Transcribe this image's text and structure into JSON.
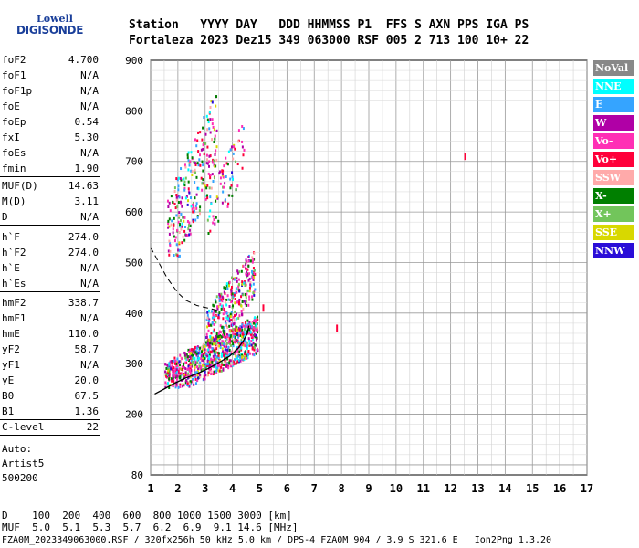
{
  "logo": {
    "top": "Lowell",
    "bottom": "DIGISONDE"
  },
  "header": {
    "line1": "Station   YYYY DAY   DDD HHMMSS P1  FFS S AXN PPS IGA PS",
    "line2": "Fortaleza 2023 Dez15 349 063000 RSF 005 2 713 100 10+ 22"
  },
  "params_a": [
    {
      "k": "foF2",
      "v": "4.700"
    },
    {
      "k": "foF1",
      "v": "N/A"
    },
    {
      "k": "foF1p",
      "v": "N/A"
    },
    {
      "k": "foE",
      "v": "N/A"
    },
    {
      "k": "foEp",
      "v": "0.54"
    },
    {
      "k": "fxI",
      "v": "5.30"
    },
    {
      "k": "foEs",
      "v": "N/A"
    },
    {
      "k": "fmin",
      "v": "1.90"
    }
  ],
  "params_b": [
    {
      "k": "MUF(D)",
      "v": "14.63"
    },
    {
      "k": "M(D)",
      "v": "3.11"
    },
    {
      "k": "D",
      "v": "N/A"
    }
  ],
  "params_c": [
    {
      "k": "h`F",
      "v": "274.0"
    },
    {
      "k": "h`F2",
      "v": "274.0"
    },
    {
      "k": "h`E",
      "v": "N/A"
    },
    {
      "k": "h`Es",
      "v": "N/A"
    }
  ],
  "params_d": [
    {
      "k": "hmF2",
      "v": "338.7"
    },
    {
      "k": "hmF1",
      "v": "N/A"
    },
    {
      "k": "hmE",
      "v": "110.0"
    },
    {
      "k": "yF2",
      "v": "58.7"
    },
    {
      "k": "yF1",
      "v": "N/A"
    },
    {
      "k": "yE",
      "v": "20.0"
    },
    {
      "k": "B0",
      "v": "67.5"
    },
    {
      "k": "B1",
      "v": "1.36"
    }
  ],
  "params_e": [
    {
      "k": "C-level",
      "v": "22"
    }
  ],
  "auto": [
    "Auto:",
    "Artist5",
    "500200"
  ],
  "legend": [
    {
      "label": "NoVal",
      "color": "#888888"
    },
    {
      "label": "NNE",
      "color": "#00ffff"
    },
    {
      "label": "E",
      "color": "#35a4ff"
    },
    {
      "label": "W",
      "color": "#b000a6"
    },
    {
      "label": "Vo-",
      "color": "#ff2fb5"
    },
    {
      "label": "Vo+",
      "color": "#ff003a"
    },
    {
      "label": "SSW",
      "color": "#ffaaaa"
    },
    {
      "label": "X-",
      "color": "#007f00"
    },
    {
      "label": "X+",
      "color": "#72c55b"
    },
    {
      "label": "SSE",
      "color": "#d8d800"
    },
    {
      "label": "NNW",
      "color": "#2a0dd8"
    }
  ],
  "footer": {
    "line1": "D    100  200  400  600  800 1000 1500 3000 [km]",
    "line2": "MUF  5.0  5.1  5.3  5.7  6.2  6.9  9.1 14.6 [MHz]",
    "line3": "FZA0M_2023349063000.RSF / 320fx256h 50 kHz 5.0 km / DPS-4 FZA0M 904 / 3.9 S 321.6 E   Ion2Png 1.3.20"
  },
  "chart_data": {
    "type": "scatter",
    "title": "",
    "xlabel": "",
    "ylabel": "",
    "xlim": [
      1,
      17
    ],
    "ylim": [
      80,
      900
    ],
    "x_ticks": [
      1,
      2,
      3,
      4,
      5,
      6,
      7,
      8,
      9,
      10,
      11,
      12,
      13,
      14,
      15,
      16,
      17
    ],
    "y_ticks": [
      80,
      200,
      300,
      400,
      500,
      600,
      700,
      800,
      900
    ],
    "grid": true,
    "legend_position": "right",
    "profile_line": {
      "x": [
        1.15,
        1.5,
        1.9,
        2.3,
        2.7,
        3.1,
        3.5,
        3.9,
        4.2,
        4.4,
        4.55,
        4.6
      ],
      "y": [
        240,
        250,
        262,
        272,
        280,
        290,
        302,
        315,
        330,
        345,
        360,
        375
      ]
    },
    "profile_dashed": {
      "x": [
        1.0,
        1.3,
        1.6,
        2.0,
        2.3,
        2.7,
        3.1,
        3.5
      ],
      "y": [
        530,
        500,
        470,
        440,
        425,
        415,
        410,
        405
      ]
    },
    "echo_clusters": [
      {
        "x0": 1.5,
        "x1": 4.9,
        "y0": 255,
        "y1": 420,
        "n": 900
      },
      {
        "x0": 3.0,
        "x1": 4.8,
        "y0": 340,
        "y1": 560,
        "n": 320
      },
      {
        "x0": 1.6,
        "x1": 3.4,
        "y0": 510,
        "y1": 900,
        "n": 260
      },
      {
        "x0": 3.0,
        "x1": 4.4,
        "y0": 560,
        "y1": 820,
        "n": 80
      }
    ],
    "isolated_points": [
      {
        "x": 7.8,
        "y": 370
      },
      {
        "x": 12.5,
        "y": 710
      },
      {
        "x": 5.1,
        "y": 410
      }
    ]
  }
}
